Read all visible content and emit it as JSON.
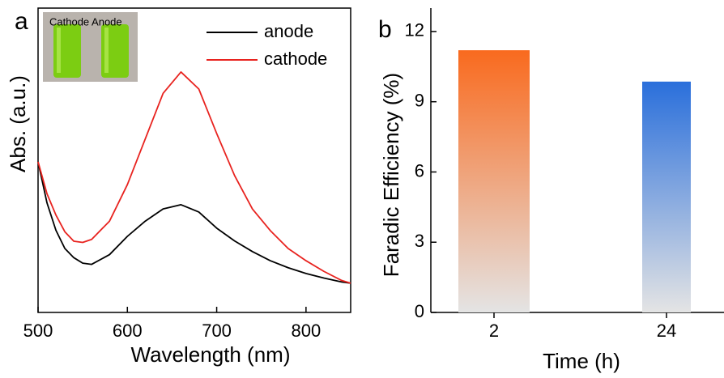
{
  "chart_data": [
    {
      "type": "line",
      "panel_label": "a",
      "inset_text": "Cathode Anode",
      "xlabel": "Wavelength (nm)",
      "ylabel": "Abs. (a.u.)",
      "x": [
        500,
        510,
        520,
        530,
        540,
        550,
        560,
        580,
        600,
        620,
        640,
        660,
        680,
        700,
        720,
        740,
        760,
        780,
        800,
        820,
        840,
        850
      ],
      "series": [
        {
          "name": "anode",
          "color": "#000000",
          "values": [
            0.495,
            0.36,
            0.27,
            0.21,
            0.18,
            0.162,
            0.158,
            0.19,
            0.25,
            0.3,
            0.34,
            0.354,
            0.33,
            0.277,
            0.235,
            0.2,
            0.17,
            0.147,
            0.128,
            0.113,
            0.1,
            0.096
          ]
        },
        {
          "name": "cathode",
          "color": "#e8231f",
          "values": [
            0.495,
            0.39,
            0.32,
            0.265,
            0.234,
            0.23,
            0.24,
            0.3,
            0.42,
            0.57,
            0.72,
            0.79,
            0.734,
            0.588,
            0.45,
            0.34,
            0.269,
            0.21,
            0.17,
            0.135,
            0.105,
            0.096
          ]
        }
      ],
      "xlim": [
        500,
        850
      ],
      "xticks": [
        500,
        600,
        700,
        800
      ],
      "ylim": [
        0,
        1
      ],
      "legend": "upper right"
    },
    {
      "type": "bar",
      "panel_label": "b",
      "xlabel": "Time (h)",
      "ylabel": "Faradic Efficiency (%)",
      "categories": [
        "2",
        "24"
      ],
      "values": [
        11.2,
        9.86
      ],
      "colors": [
        "#f96a1e",
        "#2a6fdb"
      ],
      "ylim": [
        0,
        13
      ],
      "yticks": [
        0,
        3,
        6,
        9,
        12
      ]
    }
  ]
}
